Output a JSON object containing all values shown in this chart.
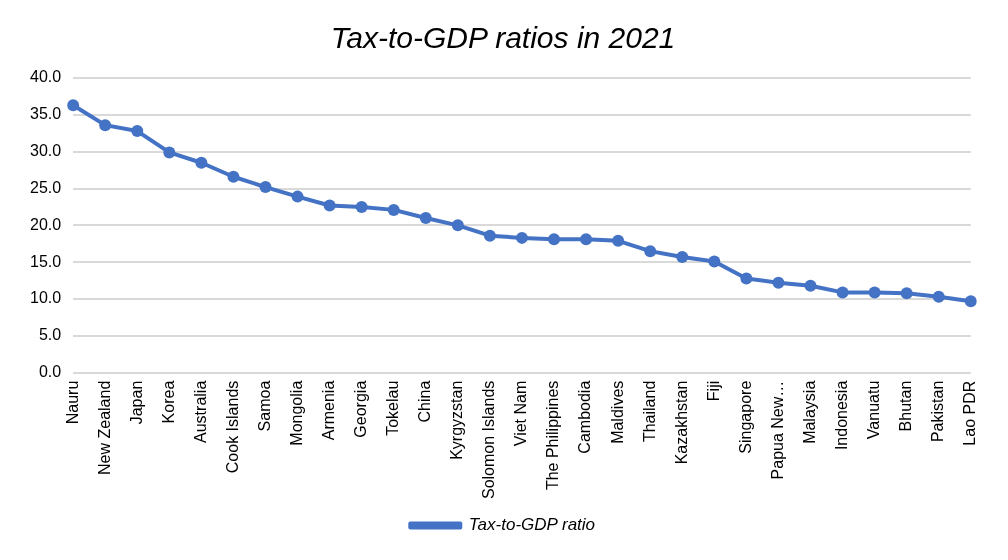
{
  "chart_data": {
    "type": "line",
    "title": "Tax-to-GDP ratios in 2021",
    "categories": [
      "Nauru",
      "New Zealand",
      "Japan",
      "Korea",
      "Australia",
      "Cook Islands",
      "Samoa",
      "Mongolia",
      "Armenia",
      "Georgia",
      "Tokelau",
      "China",
      "Kyrgyzstan",
      "Solomon Islands",
      "Viet Nam",
      "The Philippines",
      "Cambodia",
      "Maldives",
      "Thailand",
      "Kazakhstan",
      "Fiji",
      "Singapore",
      "Papua New…",
      "Malaysia",
      "Indonesia",
      "Vanuatu",
      "Bhutan",
      "Pakistan",
      "Lao PDR"
    ],
    "series": [
      {
        "name": "Tax-to-GDP ratio",
        "color": "#4472c4",
        "values": [
          36.3,
          33.6,
          32.8,
          29.9,
          28.5,
          26.6,
          25.2,
          23.9,
          22.7,
          22.5,
          22.1,
          21.0,
          20.0,
          18.6,
          18.3,
          18.1,
          18.1,
          17.9,
          16.5,
          15.7,
          15.1,
          12.8,
          12.2,
          11.8,
          10.9,
          10.9,
          10.8,
          10.3,
          9.7
        ]
      }
    ],
    "ylim": [
      0,
      40
    ],
    "yticks": [
      {
        "value": 0,
        "label": "0.0"
      },
      {
        "value": 5,
        "label": "5.0"
      },
      {
        "value": 10,
        "label": "10.0"
      },
      {
        "value": 15,
        "label": "15.0"
      },
      {
        "value": 20,
        "label": "20.0"
      },
      {
        "value": 25,
        "label": "25.0"
      },
      {
        "value": 30,
        "label": "30.0"
      },
      {
        "value": 35,
        "label": "35.0"
      },
      {
        "value": 40,
        "label": "40.0"
      }
    ],
    "grid": "y",
    "legend": "bottom",
    "marker": "circle",
    "line_style": "solid"
  }
}
